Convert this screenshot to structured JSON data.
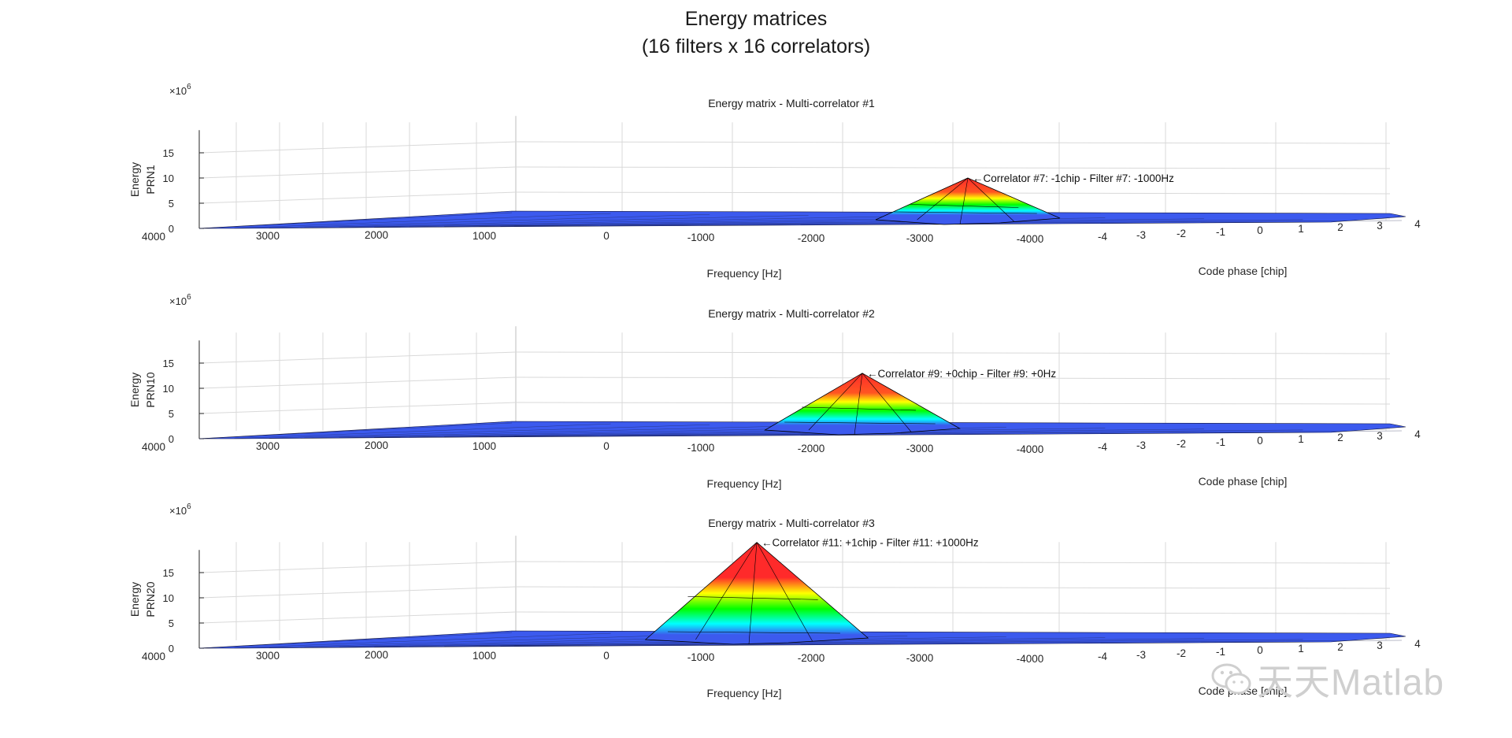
{
  "figure": {
    "title_line1": "Energy matrices",
    "title_line2": "(16 filters x 16 correlators)"
  },
  "watermark": {
    "text": "天天Matlab",
    "icon": "wechat-icon"
  },
  "colors": {
    "peak_high": "#ff2a2a",
    "peak_mid_high": "#ffff00",
    "peak_mid": "#00ff00",
    "peak_low": "#00ffff",
    "floor": "#3c5aee",
    "mesh_line": "#000000",
    "grid": "#d9d9d9"
  },
  "chart_data": [
    {
      "type": "surface",
      "title": "Energy matrix - Multi-correlator #1",
      "ylabel": "Energy\nPRN1",
      "exponent_label": "×10",
      "exponent": "6",
      "xlabel": "Frequency [Hz]",
      "code_label": "Code phase [chip]",
      "z_ticks": [
        "0",
        "5",
        "10",
        "15"
      ],
      "z_range": [
        0,
        20
      ],
      "freq_ticks": [
        "4000",
        "3000",
        "2000",
        "1000",
        "0",
        "-1000",
        "-2000",
        "-3000",
        "-4000"
      ],
      "code_ticks": [
        "-4",
        "-3",
        "-2",
        "-1",
        "0",
        "1",
        "2",
        "3",
        "4"
      ],
      "peak": {
        "value": 10,
        "code_phase_chip": -1,
        "frequency_hz": -1000
      },
      "annotation": "Correlator #7: -1chip - Filter #7: -1000Hz",
      "grid": true
    },
    {
      "type": "surface",
      "title": "Energy matrix - Multi-correlator #2",
      "ylabel": "Energy\nPRN10",
      "exponent_label": "×10",
      "exponent": "6",
      "xlabel": "Frequency [Hz]",
      "code_label": "Code phase [chip]",
      "z_ticks": [
        "0",
        "5",
        "10",
        "15"
      ],
      "z_range": [
        0,
        20
      ],
      "freq_ticks": [
        "4000",
        "3000",
        "2000",
        "1000",
        "0",
        "-1000",
        "-2000",
        "-3000",
        "-4000"
      ],
      "code_ticks": [
        "-4",
        "-3",
        "-2",
        "-1",
        "0",
        "1",
        "2",
        "3",
        "4"
      ],
      "peak": {
        "value": 13,
        "code_phase_chip": 0,
        "frequency_hz": 0
      },
      "annotation": "Correlator #9: +0chip - Filter #9: +0Hz",
      "grid": true
    },
    {
      "type": "surface",
      "title": "Energy matrix - Multi-correlator #3",
      "ylabel": "Energy\nPRN20",
      "exponent_label": "×10",
      "exponent": "6",
      "xlabel": "Frequency [Hz]",
      "code_label": "Code phase [chip]",
      "z_ticks": [
        "0",
        "5",
        "10",
        "15"
      ],
      "z_range": [
        0,
        20
      ],
      "freq_ticks": [
        "4000",
        "3000",
        "2000",
        "1000",
        "0",
        "-1000",
        "-2000",
        "-3000",
        "-4000"
      ],
      "code_ticks": [
        "-4",
        "-3",
        "-2",
        "-1",
        "0",
        "1",
        "2",
        "3",
        "4"
      ],
      "peak": {
        "value": 21,
        "code_phase_chip": 1,
        "frequency_hz": 1000
      },
      "annotation": "Correlator #11: +1chip - Filter #11: +1000Hz",
      "grid": true
    }
  ]
}
